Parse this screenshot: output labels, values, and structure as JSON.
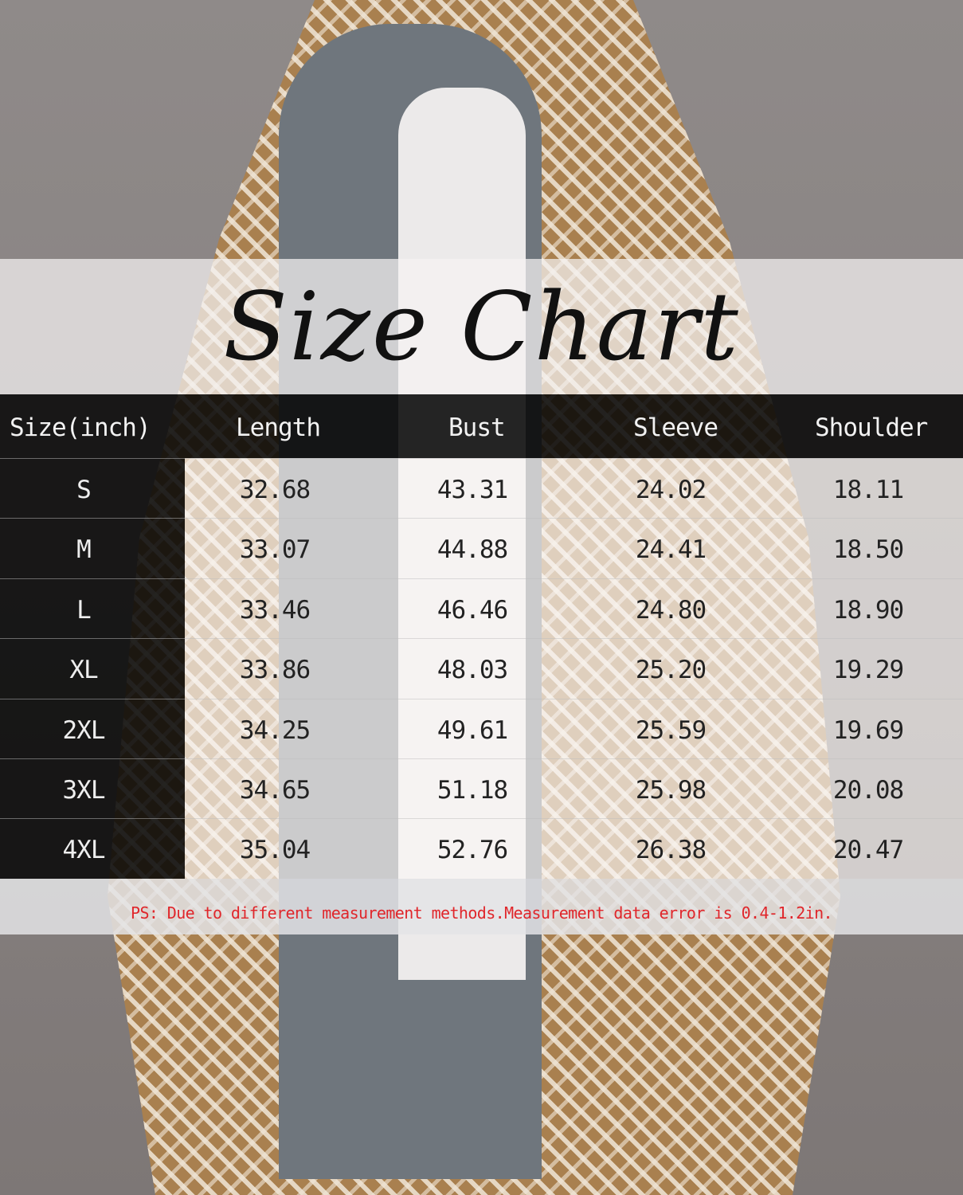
{
  "title": "Size Chart",
  "colors": {
    "header_bg": "#080808",
    "note_text": "#e0262b",
    "coat": "#a9804f"
  },
  "table": {
    "headers": [
      "Size(inch)",
      "Length",
      "Bust",
      "Sleeve",
      "Shoulder"
    ],
    "rows": [
      [
        "S",
        "32.68",
        "43.31",
        "24.02",
        "18.11"
      ],
      [
        "M",
        "33.07",
        "44.88",
        "24.41",
        "18.50"
      ],
      [
        "L",
        "33.46",
        "46.46",
        "24.80",
        "18.90"
      ],
      [
        "XL",
        "33.86",
        "48.03",
        "25.20",
        "19.29"
      ],
      [
        "2XL",
        "34.25",
        "49.61",
        "25.59",
        "19.69"
      ],
      [
        "3XL",
        "34.65",
        "51.18",
        "25.98",
        "20.08"
      ],
      [
        "4XL",
        "35.04",
        "52.76",
        "26.38",
        "20.47"
      ]
    ]
  },
  "note": "PS: Due to different measurement methods.Measurement data error is 0.4-1.2in."
}
